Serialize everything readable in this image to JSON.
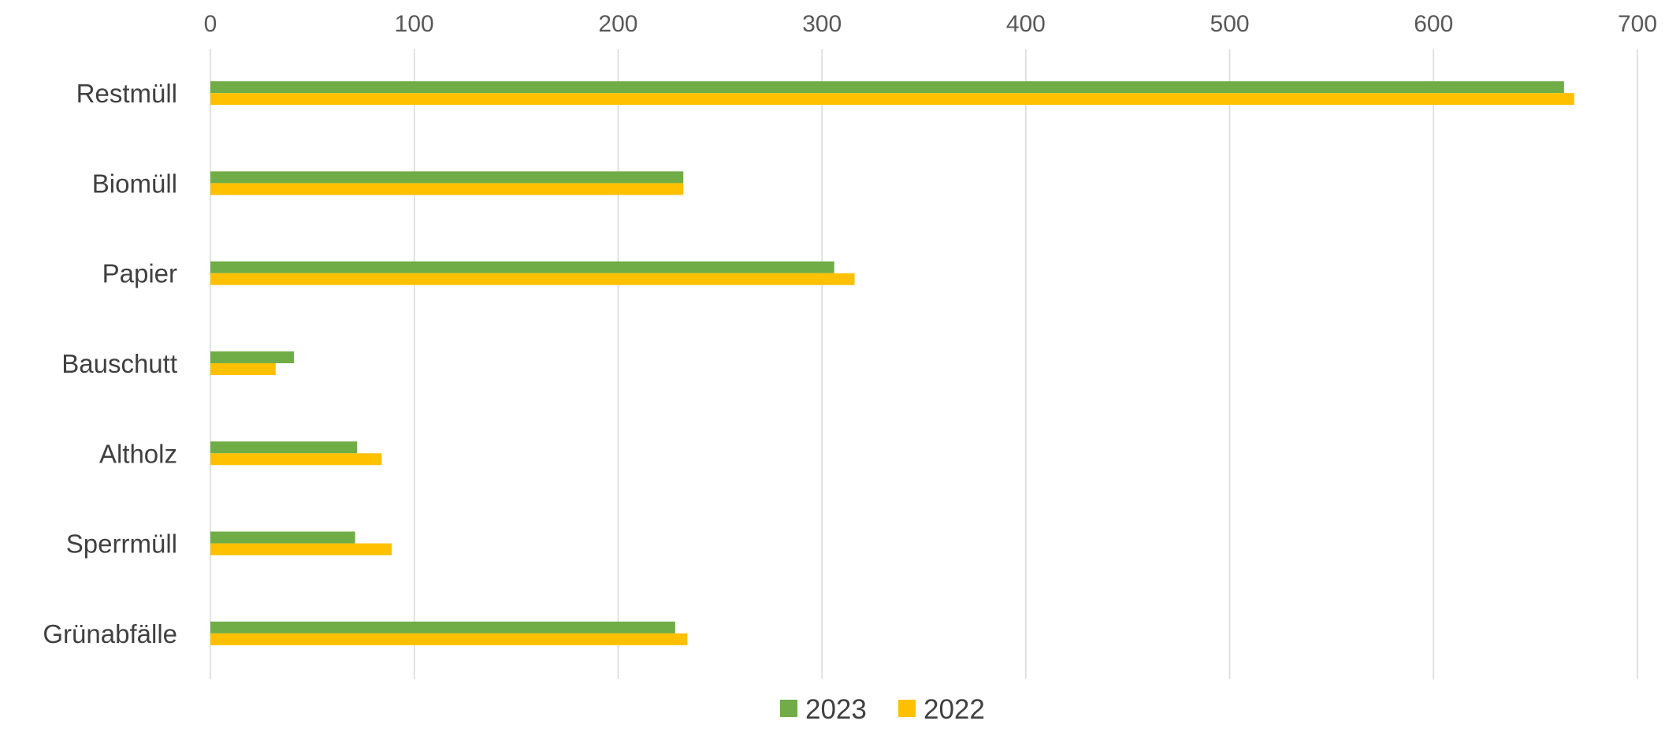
{
  "chart_data": {
    "type": "bar",
    "orientation": "horizontal",
    "categories": [
      "Restmüll",
      "Biomüll",
      "Papier",
      "Bauschutt",
      "Altholz",
      "Sperrmüll",
      "Grünabfälle"
    ],
    "series": [
      {
        "name": "2023",
        "color": "#70ad47",
        "values": [
          664,
          232,
          306,
          41,
          72,
          71,
          228
        ]
      },
      {
        "name": "2022",
        "color": "#ffc000",
        "values": [
          669,
          232,
          316,
          32,
          84,
          89,
          234
        ]
      }
    ],
    "xlim": [
      0,
      700
    ],
    "xticks": [
      0,
      100,
      200,
      300,
      400,
      500,
      600,
      700
    ],
    "x_axis_position": "top",
    "grid": true,
    "legend_position": "bottom-center"
  }
}
